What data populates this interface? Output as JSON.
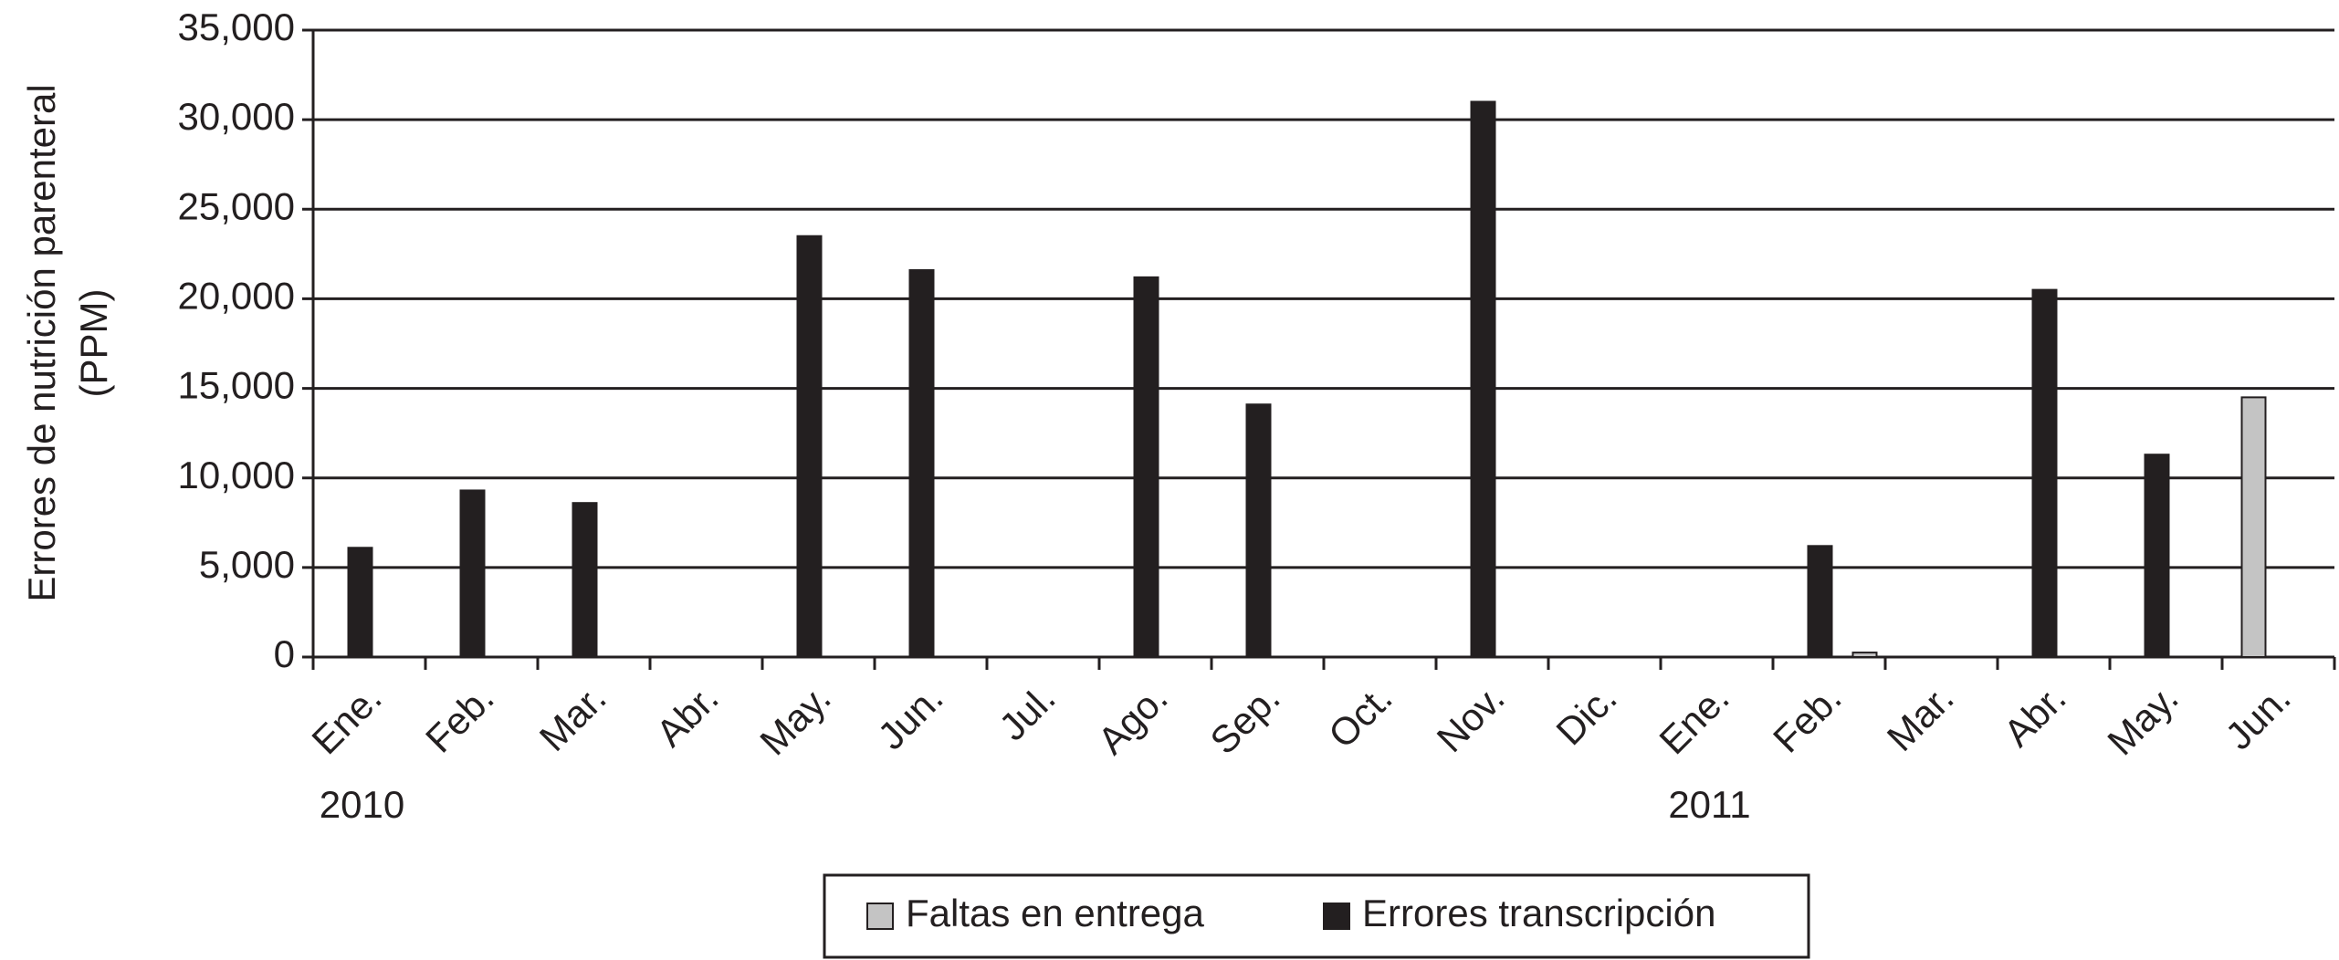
{
  "chart_data": {
    "type": "bar",
    "y_label": [
      "Errores de nutrición parenteral",
      "(PPM)"
    ],
    "categories": [
      "Ene.",
      "Feb.",
      "Mar.",
      "Abr.",
      "May.",
      "Jun.",
      "Jul.",
      "Ago.",
      "Sep.",
      "Oct.",
      "Nov.",
      "Dic.",
      "Ene.",
      "Feb.",
      "Mar.",
      "Abr.",
      "May.",
      "Jun."
    ],
    "category_groups": [
      {
        "label": "2010",
        "start": 0
      },
      {
        "label": "2011",
        "start": 12
      }
    ],
    "series": [
      {
        "name": "Faltas en entrega",
        "color": "#c4c4c4",
        "values": [
          0,
          0,
          0,
          0,
          0,
          0,
          0,
          0,
          0,
          0,
          0,
          0,
          0,
          250,
          0,
          0,
          0,
          14500
        ]
      },
      {
        "name": "Errores transcripción",
        "color": "#231f20",
        "values": [
          6100,
          9300,
          8600,
          0,
          23500,
          21600,
          0,
          21200,
          14100,
          0,
          31000,
          0,
          0,
          6200,
          0,
          20500,
          11300,
          0
        ]
      }
    ],
    "ylim": [
      0,
      35000
    ],
    "yticks": [
      0,
      {
        "value": 5000,
        "label": "5,000"
      },
      {
        "value": 10000,
        "label": "10,000"
      },
      {
        "value": 15000,
        "label": "15,000"
      },
      {
        "value": 20000,
        "label": "20,000"
      },
      {
        "value": 25000,
        "label": "25,000"
      },
      {
        "value": 30000,
        "label": "30,000"
      },
      {
        "value": 35000,
        "label": "35,000"
      }
    ],
    "grid": true,
    "legend": "bottom"
  }
}
